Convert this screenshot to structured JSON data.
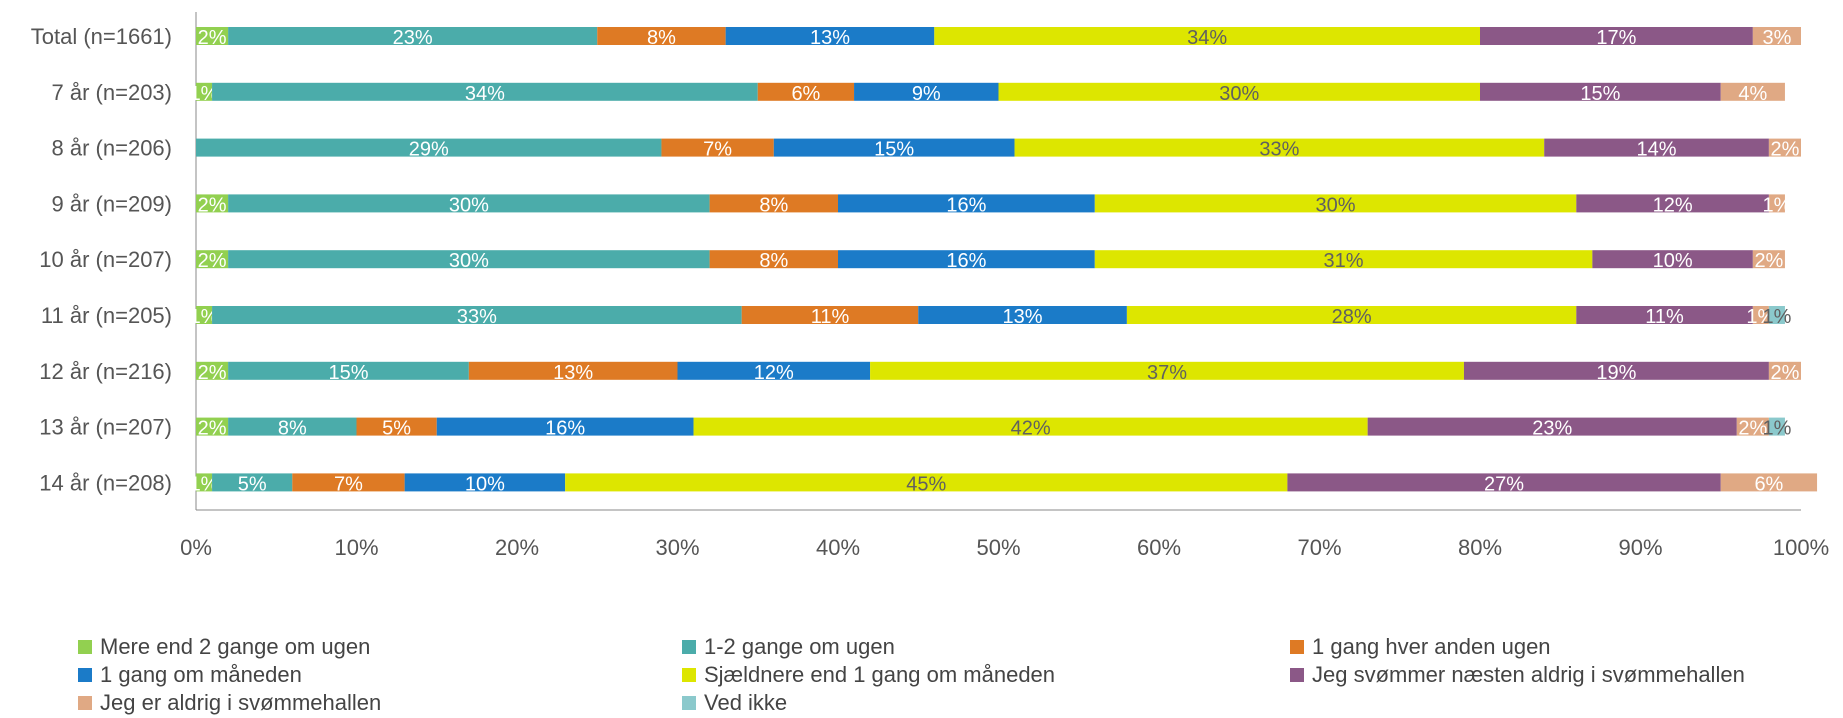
{
  "chart_data": {
    "type": "bar",
    "orientation": "horizontal",
    "stacked": true,
    "categories": [
      "Total (n=1661)",
      "7 år (n=203)",
      "8 år (n=206)",
      "9 år (n=209)",
      "10 år (n=207)",
      "11 år (n=205)",
      "12 år (n=216)",
      "13 år (n=207)",
      "14 år (n=208)"
    ],
    "series": [
      {
        "name": "Mere end 2 gange om ugen",
        "color": "#92D050",
        "values": [
          2,
          1,
          0,
          2,
          2,
          1,
          2,
          2,
          1
        ]
      },
      {
        "name": "1-2 gange om ugen",
        "color": "#4BACAA",
        "values": [
          23,
          34,
          29,
          30,
          30,
          33,
          15,
          8,
          5
        ]
      },
      {
        "name": "1 gang hver anden ugen",
        "color": "#DE7A24",
        "values": [
          8,
          6,
          7,
          8,
          8,
          11,
          13,
          5,
          7
        ]
      },
      {
        "name": "1 gang om måneden",
        "color": "#1B7BC8",
        "values": [
          13,
          9,
          15,
          16,
          16,
          13,
          12,
          16,
          10
        ]
      },
      {
        "name": "Sjældnere end 1 gang om måneden",
        "color": "#DDE600",
        "values": [
          34,
          30,
          33,
          30,
          31,
          28,
          37,
          42,
          45
        ]
      },
      {
        "name": "Jeg svømmer næsten aldrig i svømmehallen",
        "color": "#8B5887",
        "values": [
          17,
          15,
          14,
          12,
          10,
          11,
          19,
          23,
          27
        ]
      },
      {
        "name": "Jeg er aldrig i svømmehallen",
        "color": "#E0A984",
        "values": [
          3,
          4,
          2,
          1,
          2,
          1,
          2,
          2,
          6
        ]
      },
      {
        "name": "Ved ikke",
        "color": "#8BC9CC",
        "values": [
          0,
          0,
          0,
          0,
          0,
          1,
          0,
          1,
          0
        ]
      }
    ],
    "labels": [
      [
        "2%",
        "23%",
        "8%",
        "13%",
        "34%",
        "17%",
        "3%",
        ""
      ],
      [
        "1%",
        "34%",
        "6%",
        "9%",
        "30%",
        "15%",
        "4%",
        ""
      ],
      [
        "",
        "29%",
        "7%",
        "15%",
        "33%",
        "14%",
        "2%",
        ""
      ],
      [
        "2%",
        "30%",
        "8%",
        "16%",
        "30%",
        "12%",
        "1%",
        ""
      ],
      [
        "2%",
        "30%",
        "8%",
        "16%",
        "31%",
        "10%",
        "2%",
        ""
      ],
      [
        "1%",
        "33%",
        "11%",
        "13%",
        "28%",
        "11%",
        "1%",
        "1%"
      ],
      [
        "2%",
        "15%",
        "13%",
        "12%",
        "37%",
        "19%",
        "2%",
        ""
      ],
      [
        "2%",
        "8%",
        "5%",
        "16%",
        "42%",
        "23%",
        "2%",
        "1%"
      ],
      [
        "1%",
        "5%",
        "7%",
        "10%",
        "45%",
        "27%",
        "6%",
        ""
      ]
    ],
    "xlim": [
      0,
      100
    ],
    "xticks": [
      "0%",
      "10%",
      "20%",
      "30%",
      "40%",
      "50%",
      "60%",
      "70%",
      "80%",
      "90%",
      "100%"
    ],
    "grid": false,
    "legend_position": "bottom"
  }
}
